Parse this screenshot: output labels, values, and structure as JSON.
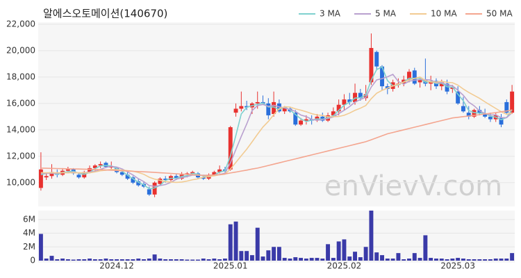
{
  "chart_data": {
    "type": "candlestick",
    "title": "알에스오토메이션(140670)",
    "watermark": "enVievV.com",
    "categories": [
      null,
      null,
      null,
      null,
      null,
      null,
      null,
      null,
      null,
      null,
      null,
      null,
      null,
      null,
      "2024.12",
      null,
      null,
      null,
      null,
      null,
      null,
      null,
      null,
      null,
      null,
      null,
      null,
      null,
      null,
      null,
      null,
      null,
      null,
      null,
      null,
      "2025.01",
      null,
      null,
      null,
      null,
      null,
      null,
      null,
      null,
      null,
      null,
      null,
      null,
      null,
      null,
      null,
      null,
      null,
      null,
      null,
      null,
      "2025.02",
      null,
      null,
      null,
      null,
      null,
      null,
      null,
      null,
      null,
      null,
      null,
      null,
      null,
      null,
      null,
      null,
      null,
      null,
      null,
      null,
      "2025.03",
      null,
      null,
      null,
      null,
      null,
      null,
      null,
      null,
      null,
      null
    ],
    "open": [
      9600,
      10400,
      10500,
      10700,
      10600,
      10900,
      11000,
      10600,
      10400,
      10800,
      11100,
      11300,
      11500,
      11200,
      11100,
      10800,
      10600,
      10400,
      10100,
      9900,
      9500,
      9100,
      9900,
      10300,
      10200,
      10500,
      10300,
      10600,
      10700,
      10700,
      10400,
      10300,
      10600,
      10800,
      11000,
      11000,
      15300,
      15600,
      15800,
      15700,
      16000,
      16100,
      16000,
      15200,
      16000,
      15400,
      15600,
      15300,
      14400,
      14700,
      14800,
      14700,
      15000,
      14700,
      15100,
      15400,
      15900,
      16300,
      16100,
      16800,
      16400,
      17600,
      19900,
      18800,
      17300,
      17100,
      17400,
      17500,
      17800,
      18500,
      17600,
      17800,
      17500,
      17700,
      17300,
      17500,
      17100,
      16900,
      15800,
      15300,
      15000,
      15500,
      15200,
      15000,
      14800,
      14900,
      16100,
      15300
    ],
    "high": [
      12300,
      10700,
      11400,
      11000,
      11100,
      11200,
      11100,
      10700,
      10900,
      11300,
      11400,
      11600,
      11600,
      11600,
      11200,
      11000,
      10800,
      10500,
      10300,
      10100,
      9700,
      10100,
      10400,
      10500,
      10600,
      10700,
      10800,
      10800,
      10900,
      10800,
      10600,
      10700,
      10900,
      11300,
      11200,
      14300,
      16000,
      16900,
      16200,
      16100,
      16900,
      16600,
      16400,
      16900,
      16300,
      15800,
      15700,
      15500,
      14900,
      15100,
      15100,
      15200,
      15300,
      15300,
      15700,
      16300,
      16700,
      16800,
      17500,
      17100,
      17400,
      21300,
      20000,
      18900,
      17500,
      17800,
      17900,
      18100,
      18600,
      18700,
      17900,
      19400,
      18100,
      17900,
      17800,
      17800,
      17400,
      17300,
      16500,
      15800,
      15600,
      15800,
      15600,
      15300,
      15300,
      15200,
      16300,
      17400
    ],
    "low": [
      9400,
      10200,
      10300,
      10400,
      10500,
      10700,
      10600,
      10300,
      10300,
      10700,
      10900,
      11100,
      11100,
      11000,
      10700,
      10500,
      10200,
      9900,
      9700,
      9600,
      9000,
      8900,
      9800,
      10000,
      10100,
      10200,
      10200,
      10400,
      10600,
      10300,
      10200,
      10200,
      10500,
      10700,
      10800,
      10900,
      15000,
      15400,
      15500,
      15200,
      15600,
      15900,
      14800,
      15000,
      15300,
      15200,
      15300,
      14300,
      14300,
      14400,
      14400,
      14600,
      14600,
      14600,
      15000,
      15100,
      15500,
      15900,
      15900,
      16200,
      16200,
      17400,
      18600,
      17000,
      16700,
      16900,
      17200,
      17300,
      17600,
      17400,
      17200,
      17300,
      17000,
      17100,
      17000,
      16700,
      16800,
      15900,
      15300,
      14800,
      14900,
      15100,
      14900,
      14600,
      14600,
      14200,
      15200,
      15200
    ],
    "close": [
      11000,
      10500,
      10800,
      10600,
      10900,
      11000,
      10700,
      10400,
      10800,
      11100,
      11300,
      11400,
      11200,
      11200,
      10800,
      10600,
      10300,
      10000,
      9800,
      9700,
      9100,
      10000,
      10300,
      10200,
      10500,
      10300,
      10600,
      10700,
      10800,
      10400,
      10300,
      10600,
      10800,
      11000,
      10900,
      14200,
      15600,
      15800,
      15700,
      16000,
      16100,
      16000,
      15100,
      16100,
      15400,
      15700,
      15400,
      14400,
      14700,
      14800,
      14700,
      15000,
      14700,
      15100,
      15400,
      15900,
      16300,
      16100,
      16800,
      16400,
      16700,
      20200,
      18800,
      17300,
      17100,
      17600,
      17500,
      17800,
      18400,
      17500,
      17800,
      17500,
      17700,
      17300,
      17600,
      16900,
      17200,
      16000,
      15400,
      15000,
      15500,
      15300,
      15000,
      14800,
      15100,
      14400,
      15300,
      16900
    ],
    "volume": [
      3900000,
      300000,
      700000,
      200000,
      300000,
      200000,
      150000,
      200000,
      200000,
      300000,
      200000,
      200000,
      300000,
      200000,
      200000,
      200000,
      200000,
      200000,
      300000,
      200000,
      300000,
      900000,
      300000,
      200000,
      200000,
      200000,
      200000,
      150000,
      150000,
      150000,
      300000,
      200000,
      300000,
      200000,
      300000,
      5300000,
      5700000,
      1400000,
      1400000,
      800000,
      4800000,
      600000,
      1500000,
      2000000,
      2000000,
      400000,
      300000,
      500000,
      400000,
      300000,
      400000,
      400000,
      300000,
      2400000,
      400000,
      2800000,
      3100000,
      600000,
      1300000,
      500000,
      2000000,
      7300000,
      1200000,
      800000,
      300000,
      300000,
      1100000,
      200000,
      300000,
      1100000,
      400000,
      3700000,
      400000,
      300000,
      300000,
      200000,
      300000,
      400000,
      300000,
      200000,
      200000,
      200000,
      200000,
      200000,
      300000,
      300000,
      300000,
      1100000
    ],
    "up_color": "#e8312f",
    "down_color": "#2a6fdb",
    "series": [
      {
        "name": "3 MA",
        "color": "#7fd1cf",
        "values": [
          10600,
          10700,
          10767,
          10633,
          10767,
          10833,
          10867,
          10700,
          10633,
          10767,
          11067,
          11267,
          11300,
          11267,
          11067,
          10867,
          10567,
          10300,
          10033,
          9833,
          9533,
          9600,
          9800,
          10167,
          10333,
          10333,
          10467,
          10533,
          10700,
          10633,
          10500,
          10433,
          10567,
          10800,
          10900,
          12033,
          13567,
          15200,
          15700,
          15833,
          15933,
          16033,
          15733,
          15733,
          15533,
          15733,
          15500,
          15167,
          14833,
          14633,
          14733,
          14833,
          14800,
          14933,
          15067,
          15467,
          15867,
          16100,
          16400,
          16433,
          16633,
          17767,
          18567,
          18767,
          17733,
          17333,
          17400,
          17633,
          17900,
          17900,
          17900,
          17600,
          17667,
          17500,
          17533,
          17267,
          17233,
          16700,
          16200,
          15467,
          15300,
          15267,
          15267,
          15033,
          14967,
          14767,
          14933,
          15533
        ]
      },
      {
        "name": "5 MA",
        "color": "#b9a0cf",
        "values": [
          10700,
          10700,
          10700,
          10700,
          10760,
          10760,
          10800,
          10720,
          10760,
          10800,
          10860,
          11000,
          11160,
          11240,
          11180,
          11040,
          10820,
          10580,
          10300,
          10080,
          9780,
          9720,
          9780,
          9860,
          10020,
          10260,
          10380,
          10460,
          10580,
          10560,
          10560,
          10560,
          10580,
          10620,
          10720,
          11500,
          12500,
          13500,
          14440,
          15460,
          15840,
          15920,
          15780,
          15860,
          15740,
          15660,
          15540,
          15400,
          15120,
          15000,
          14800,
          14720,
          14780,
          14860,
          14980,
          15220,
          15480,
          15760,
          16100,
          16300,
          16460,
          17240,
          17780,
          17880,
          18020,
          18200,
          17660,
          17460,
          17680,
          17760,
          17800,
          17800,
          17780,
          17560,
          17580,
          17400,
          17340,
          17000,
          16620,
          16100,
          15820,
          15440,
          15240,
          15120,
          15140,
          14920,
          14920,
          15300
        ]
      },
      {
        "name": "10 MA",
        "color": "#f2cb92",
        "values": [
          10750,
          10750,
          10750,
          10750,
          10750,
          10750,
          10750,
          10750,
          10750,
          10750,
          10810,
          10900,
          10940,
          11000,
          10990,
          10950,
          10910,
          10870,
          10770,
          10630,
          10410,
          10270,
          10180,
          10080,
          10050,
          10020,
          10050,
          10120,
          10220,
          10290,
          10410,
          10470,
          10520,
          10600,
          10640,
          11030,
          11530,
          12040,
          12530,
          13090,
          13670,
          14210,
          14640,
          15150,
          15600,
          15750,
          15730,
          15590,
          15490,
          15370,
          15230,
          15130,
          15090,
          14990,
          14990,
          15010,
          15100,
          15270,
          15480,
          15640,
          15840,
          16360,
          16770,
          16990,
          17160,
          17330,
          17450,
          17620,
          17780,
          17890,
          18000,
          17730,
          17620,
          17620,
          17670,
          17600,
          17570,
          17390,
          17090,
          16840,
          16610,
          16390,
          16120,
          15870,
          15620,
          15370,
          15180,
          15270
        ]
      },
      {
        "name": "50 MA",
        "color": "#f4a58f",
        "values": [
          11100,
          11090,
          11080,
          11070,
          11060,
          11050,
          11040,
          11030,
          11020,
          11010,
          11000,
          10980,
          10960,
          10940,
          10920,
          10900,
          10880,
          10860,
          10840,
          10820,
          10800,
          10775,
          10750,
          10725,
          10700,
          10675,
          10650,
          10625,
          10600,
          10575,
          10550,
          10560,
          10580,
          10600,
          10660,
          10730,
          10800,
          10880,
          10950,
          11030,
          11100,
          11200,
          11300,
          11400,
          11500,
          11600,
          11700,
          11800,
          11900,
          12000,
          12100,
          12200,
          12300,
          12400,
          12500,
          12600,
          12700,
          12800,
          12900,
          13000,
          13100,
          13250,
          13400,
          13550,
          13700,
          13800,
          13900,
          14000,
          14100,
          14200,
          14300,
          14400,
          14500,
          14600,
          14700,
          14800,
          14900,
          14950,
          15000,
          15050,
          15100,
          15150,
          15200,
          15250,
          15300,
          15370,
          15430,
          15500
        ]
      }
    ],
    "ylim": [
      8200,
      22150
    ],
    "yticks": [
      {
        "value": 10000,
        "label": "10,000"
      },
      {
        "value": 12000,
        "label": "12,000"
      },
      {
        "value": 14000,
        "label": "14,000"
      },
      {
        "value": 16000,
        "label": "16,000"
      },
      {
        "value": 18000,
        "label": "18,000"
      },
      {
        "value": 20000,
        "label": "20,000"
      },
      {
        "value": 22000,
        "label": "22,000"
      }
    ],
    "volume_lim": [
      0,
      7300000
    ],
    "volume_ticks": [
      0,
      {
        "value": 2000000,
        "label": "2M"
      },
      {
        "value": 4000000,
        "label": "4M"
      },
      {
        "value": 6000000,
        "label": "6M"
      }
    ],
    "grid": true
  }
}
